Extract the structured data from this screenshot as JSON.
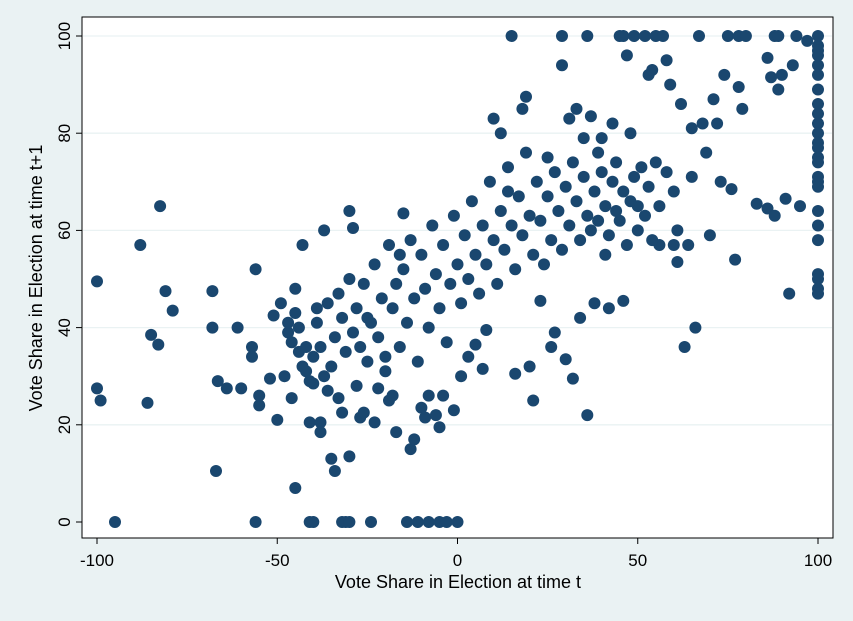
{
  "chart_data": {
    "type": "scatter",
    "xlabel": "Vote Share in Election at time t",
    "ylabel": "Vote Share in Election at time t+1",
    "xlim": [
      -100,
      100
    ],
    "ylim": [
      0,
      100
    ],
    "x_ticks": [
      -100,
      -50,
      0,
      50,
      100
    ],
    "y_ticks": [
      0,
      20,
      40,
      60,
      80,
      100
    ],
    "grid": "horizontal",
    "legend": "none",
    "marker_color": "#1a476f",
    "plot_background": "#ffffff",
    "page_background": "#eaf2f3",
    "points": [
      [
        -100,
        49.5
      ],
      [
        -100,
        27.5
      ],
      [
        -99,
        25
      ],
      [
        -95,
        0
      ],
      [
        -88,
        57
      ],
      [
        -86,
        24.5
      ],
      [
        -85,
        38.5
      ],
      [
        -83,
        36.5
      ],
      [
        -82.5,
        65
      ],
      [
        -81,
        47.5
      ],
      [
        -79,
        43.5
      ],
      [
        -68,
        47.5
      ],
      [
        -68,
        40
      ],
      [
        -67,
        10.5
      ],
      [
        -66.5,
        29
      ],
      [
        -64,
        27.5
      ],
      [
        -61,
        40
      ],
      [
        -60,
        27.5
      ],
      [
        -57,
        36
      ],
      [
        -57,
        34
      ],
      [
        -56,
        52
      ],
      [
        -56,
        0
      ],
      [
        -55,
        26
      ],
      [
        -55,
        24
      ],
      [
        -52,
        29.5
      ],
      [
        -51,
        42.5
      ],
      [
        -50,
        21
      ],
      [
        -49,
        45
      ],
      [
        -48,
        30
      ],
      [
        -47,
        39
      ],
      [
        -46,
        25.5
      ],
      [
        -45,
        7
      ],
      [
        -45,
        48
      ],
      [
        -44,
        35
      ],
      [
        -43,
        57
      ],
      [
        -42,
        31
      ],
      [
        -41,
        20.5
      ],
      [
        -41,
        0
      ],
      [
        -40,
        28.5
      ],
      [
        -39,
        44
      ],
      [
        -38,
        18.5
      ],
      [
        -38,
        20.5
      ],
      [
        -37,
        60
      ],
      [
        -36,
        27
      ],
      [
        -35,
        13
      ],
      [
        -34,
        10.5
      ],
      [
        -33,
        25.5
      ],
      [
        -32,
        22.5
      ],
      [
        -31,
        0
      ],
      [
        -30,
        13.5
      ],
      [
        -30,
        64
      ],
      [
        -29,
        60.5
      ],
      [
        -28,
        28
      ],
      [
        -27,
        21.5
      ],
      [
        -26,
        22.5
      ],
      [
        -25,
        42
      ],
      [
        -24,
        0
      ],
      [
        -23,
        20.5
      ],
      [
        -22,
        27.5
      ],
      [
        -20,
        34
      ],
      [
        -19,
        25
      ],
      [
        -18,
        26
      ],
      [
        -17,
        18.5
      ],
      [
        -16,
        55
      ],
      [
        -15,
        63.5
      ],
      [
        -14,
        0
      ],
      [
        -13,
        15
      ],
      [
        -12,
        17
      ],
      [
        -11,
        0
      ],
      [
        -10,
        23.5
      ],
      [
        -9,
        21.5
      ],
      [
        -8,
        26
      ],
      [
        -8,
        0
      ],
      [
        -6,
        22
      ],
      [
        -5,
        0
      ],
      [
        -5,
        19.5
      ],
      [
        -4,
        26
      ],
      [
        -3,
        0
      ],
      [
        -1,
        23
      ],
      [
        -40,
        0
      ],
      [
        -32,
        0
      ],
      [
        -30,
        0
      ],
      [
        0,
        0
      ],
      [
        1,
        30
      ],
      [
        3,
        34
      ],
      [
        5,
        36.5
      ],
      [
        7,
        31.5
      ],
      [
        8,
        39.5
      ],
      [
        10,
        83
      ],
      [
        12,
        80
      ],
      [
        14,
        68
      ],
      [
        15,
        100
      ],
      [
        16,
        30.5
      ],
      [
        18,
        85
      ],
      [
        19,
        87.5
      ],
      [
        20,
        32
      ],
      [
        21,
        25
      ],
      [
        23,
        45.5
      ],
      [
        25,
        75
      ],
      [
        26,
        36
      ],
      [
        27,
        39
      ],
      [
        29,
        94
      ],
      [
        29,
        100
      ],
      [
        30,
        33.5
      ],
      [
        31,
        83
      ],
      [
        32,
        29.5
      ],
      [
        33,
        85
      ],
      [
        34,
        42
      ],
      [
        35,
        79
      ],
      [
        36,
        100
      ],
      [
        36,
        22
      ],
      [
        37,
        83.5
      ],
      [
        38,
        45
      ],
      [
        39,
        76
      ],
      [
        40,
        79
      ],
      [
        41,
        55
      ],
      [
        42,
        44
      ],
      [
        43,
        82
      ],
      [
        44,
        74
      ],
      [
        45,
        100
      ],
      [
        46,
        45.5
      ],
      [
        46,
        100
      ],
      [
        47,
        96
      ],
      [
        48,
        80
      ],
      [
        49,
        100
      ],
      [
        50,
        65
      ],
      [
        52,
        100
      ],
      [
        53,
        92
      ],
      [
        54,
        93
      ],
      [
        55,
        100
      ],
      [
        56,
        57
      ],
      [
        57,
        100
      ],
      [
        58,
        95
      ],
      [
        59,
        90
      ],
      [
        60,
        57
      ],
      [
        61,
        53.5
      ],
      [
        61,
        60
      ],
      [
        62,
        86
      ],
      [
        63,
        36
      ],
      [
        64,
        57
      ],
      [
        65,
        81
      ],
      [
        65,
        71
      ],
      [
        66,
        40
      ],
      [
        67,
        100
      ],
      [
        68,
        82
      ],
      [
        69,
        76
      ],
      [
        70,
        59
      ],
      [
        71,
        87
      ],
      [
        72,
        82
      ],
      [
        73,
        70
      ],
      [
        74,
        92
      ],
      [
        75,
        100
      ],
      [
        76,
        68.5
      ],
      [
        77,
        54
      ],
      [
        78,
        100
      ],
      [
        78,
        89.5
      ],
      [
        79,
        85
      ],
      [
        80,
        100
      ],
      [
        83,
        65.5
      ],
      [
        86,
        95.5
      ],
      [
        86,
        64.5
      ],
      [
        87,
        91.5
      ],
      [
        88,
        63
      ],
      [
        88,
        100
      ],
      [
        89,
        100
      ],
      [
        89,
        89
      ],
      [
        90,
        92
      ],
      [
        91,
        66.5
      ],
      [
        92,
        47
      ],
      [
        93,
        94
      ],
      [
        94,
        100
      ],
      [
        95,
        65
      ],
      [
        97,
        99
      ],
      [
        100,
        100
      ],
      [
        100,
        98
      ],
      [
        100,
        97
      ],
      [
        100,
        96
      ],
      [
        100,
        94
      ],
      [
        100,
        92
      ],
      [
        100,
        89
      ],
      [
        100,
        86
      ],
      [
        100,
        84
      ],
      [
        100,
        82
      ],
      [
        100,
        80
      ],
      [
        100,
        78
      ],
      [
        100,
        77
      ],
      [
        100,
        75
      ],
      [
        100,
        74
      ],
      [
        100,
        71
      ],
      [
        100,
        70
      ],
      [
        100,
        69
      ],
      [
        100,
        64
      ],
      [
        100,
        61
      ],
      [
        100,
        58
      ],
      [
        100,
        51
      ],
      [
        100,
        50
      ],
      [
        100,
        48
      ],
      [
        100,
        47
      ],
      [
        -47,
        41
      ],
      [
        -46,
        37
      ],
      [
        -45,
        43
      ],
      [
        -44,
        40
      ],
      [
        -43,
        32
      ],
      [
        -42,
        36
      ],
      [
        -41,
        29
      ],
      [
        -40,
        34
      ],
      [
        -39,
        41
      ],
      [
        -38,
        36
      ],
      [
        -37,
        30
      ],
      [
        -36,
        45
      ],
      [
        -35,
        32
      ],
      [
        -34,
        38
      ],
      [
        -33,
        47
      ],
      [
        -32,
        42
      ],
      [
        -31,
        35
      ],
      [
        -30,
        50
      ],
      [
        -29,
        39
      ],
      [
        -28,
        44
      ],
      [
        -27,
        36
      ],
      [
        -26,
        49
      ],
      [
        -25,
        33
      ],
      [
        -24,
        41
      ],
      [
        -23,
        53
      ],
      [
        -22,
        38
      ],
      [
        -21,
        46
      ],
      [
        -20,
        31
      ],
      [
        -19,
        57
      ],
      [
        -18,
        44
      ],
      [
        -17,
        49
      ],
      [
        -16,
        36
      ],
      [
        -15,
        52
      ],
      [
        -14,
        41
      ],
      [
        -13,
        58
      ],
      [
        -12,
        46
      ],
      [
        -11,
        33
      ],
      [
        -10,
        55
      ],
      [
        -9,
        48
      ],
      [
        -8,
        40
      ],
      [
        -7,
        61
      ],
      [
        -6,
        51
      ],
      [
        -5,
        44
      ],
      [
        -4,
        57
      ],
      [
        -3,
        37
      ],
      [
        -2,
        49
      ],
      [
        -1,
        63
      ],
      [
        0,
        53
      ],
      [
        1,
        45
      ],
      [
        2,
        59
      ],
      [
        3,
        50
      ],
      [
        4,
        66
      ],
      [
        5,
        55
      ],
      [
        6,
        47
      ],
      [
        7,
        61
      ],
      [
        8,
        53
      ],
      [
        9,
        70
      ],
      [
        10,
        58
      ],
      [
        11,
        49
      ],
      [
        12,
        64
      ],
      [
        13,
        56
      ],
      [
        14,
        73
      ],
      [
        15,
        61
      ],
      [
        16,
        52
      ],
      [
        17,
        67
      ],
      [
        18,
        59
      ],
      [
        19,
        76
      ],
      [
        20,
        63
      ],
      [
        21,
        55
      ],
      [
        22,
        70
      ],
      [
        23,
        62
      ],
      [
        24,
        53
      ],
      [
        25,
        67
      ],
      [
        26,
        58
      ],
      [
        27,
        72
      ],
      [
        28,
        64
      ],
      [
        29,
        56
      ],
      [
        30,
        69
      ],
      [
        31,
        61
      ],
      [
        32,
        74
      ],
      [
        33,
        66
      ],
      [
        34,
        58
      ],
      [
        35,
        71
      ],
      [
        36,
        63
      ],
      [
        37,
        60
      ],
      [
        38,
        68
      ],
      [
        39,
        62
      ],
      [
        40,
        72
      ],
      [
        41,
        65
      ],
      [
        42,
        59
      ],
      [
        43,
        70
      ],
      [
        44,
        64
      ],
      [
        45,
        62
      ],
      [
        46,
        68
      ],
      [
        47,
        57
      ],
      [
        48,
        66
      ],
      [
        49,
        71
      ],
      [
        50,
        60
      ],
      [
        51,
        73
      ],
      [
        52,
        63
      ],
      [
        53,
        69
      ],
      [
        54,
        58
      ],
      [
        55,
        74
      ],
      [
        56,
        65
      ],
      [
        58,
        72
      ],
      [
        60,
        68
      ]
    ]
  }
}
